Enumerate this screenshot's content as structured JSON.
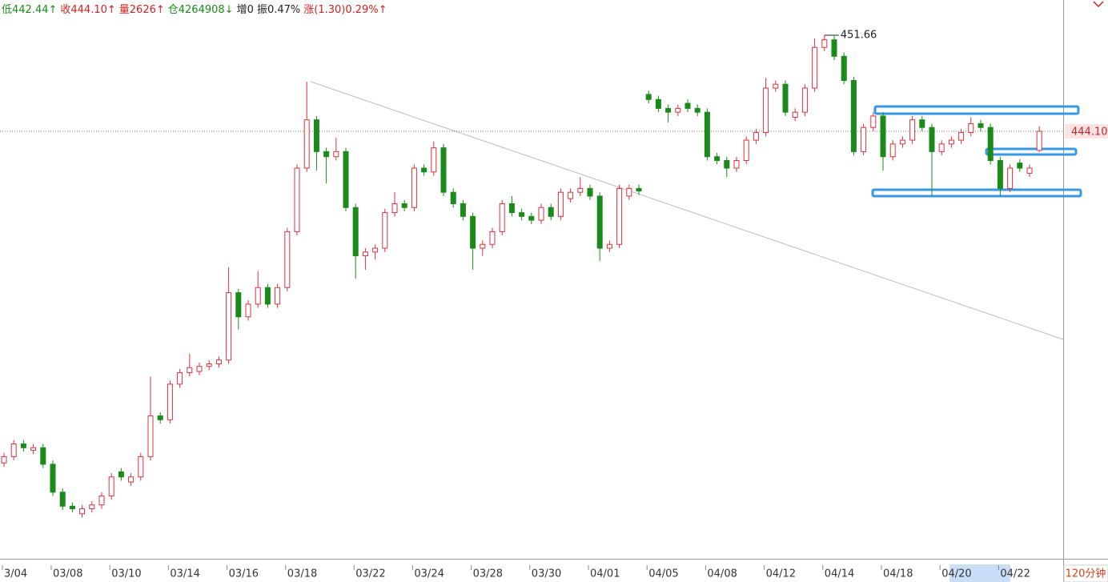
{
  "chart_data": {
    "type": "candlestick",
    "header": [
      {
        "text": "低442.44↑",
        "color": "#1a8a1a"
      },
      {
        "text": "收444.10↑",
        "color": "#d42020"
      },
      {
        "text": "量2626↑",
        "color": "#d42020"
      },
      {
        "text": "仓4264908↓",
        "color": "#1a8a1a"
      },
      {
        "text": "增0 振0.47%",
        "color": "#222222"
      },
      {
        "text": "涨(1.30)0.29%↑",
        "color": "#d42020"
      }
    ],
    "period": "120分钟",
    "up_color": "#e0303c",
    "down_color": "#1a8a1a",
    "ylim": [
      410.46,
      454.43
    ],
    "categories": [
      "3/04",
      null,
      null,
      null,
      null,
      "03/08",
      null,
      null,
      null,
      null,
      null,
      "03/10",
      null,
      null,
      null,
      null,
      null,
      "03/14",
      null,
      null,
      null,
      null,
      null,
      "03/16",
      null,
      null,
      null,
      null,
      null,
      "03/18",
      null,
      null,
      null,
      null,
      null,
      null,
      "03/22",
      null,
      null,
      null,
      null,
      null,
      "03/24",
      null,
      null,
      null,
      null,
      null,
      "03/28",
      null,
      null,
      null,
      null,
      null,
      "03/30",
      null,
      null,
      null,
      null,
      null,
      "04/01",
      null,
      null,
      null,
      null,
      null,
      "04/05",
      null,
      null,
      null,
      null,
      null,
      "04/08",
      null,
      null,
      null,
      null,
      null,
      "04/12",
      null,
      null,
      null,
      null,
      null,
      "04/14",
      null,
      null,
      null,
      null,
      null,
      "04/18",
      null,
      null,
      null,
      null,
      null,
      "04/20",
      null,
      null,
      null,
      null,
      null,
      "04/22",
      null,
      null,
      null,
      null
    ],
    "open": [
      418.0,
      418.5,
      419.5,
      419.0,
      419.2,
      417.9,
      415.7,
      414.6,
      414.0,
      414.4,
      414.7,
      415.4,
      417.3,
      416.5,
      416.9,
      418.5,
      421.7,
      421.4,
      424.2,
      425.1,
      425.2,
      425.6,
      425.8,
      426.1,
      431.4,
      429.5,
      430.5,
      431.8,
      430.5,
      431.8,
      436.2,
      441.2,
      445.0,
      442.5,
      442.1,
      442.5,
      438.1,
      434.3,
      434.6,
      434.9,
      437.7,
      438.4,
      438.1,
      441.2,
      440.9,
      442.8,
      439.3,
      438.4,
      437.4,
      434.9,
      435.2,
      436.2,
      438.4,
      437.7,
      437.4,
      437.1,
      438.1,
      437.4,
      438.8,
      439.3,
      439.6,
      439.0,
      434.9,
      435.2,
      439.0,
      439.6,
      447.0,
      446.6,
      445.9,
      445.6,
      446.3,
      445.9,
      445.6,
      442.1,
      441.8,
      441.2,
      441.8,
      443.4,
      444.0,
      447.5,
      447.8,
      445.2,
      445.6,
      447.5,
      450.7,
      451.3,
      450.0,
      448.1,
      442.5,
      444.4,
      445.3,
      442.1,
      443.1,
      443.4,
      445.0,
      444.4,
      442.5,
      443.1,
      443.4,
      444.0,
      444.7,
      444.4,
      441.8,
      439.6,
      441.6,
      440.8,
      442.6
    ],
    "high": [
      418.8,
      419.8,
      419.8,
      419.5,
      419.5,
      418.2,
      416.0,
      414.9,
      414.7,
      415.0,
      415.7,
      417.2,
      417.6,
      417.2,
      418.8,
      424.8,
      422.0,
      424.5,
      425.4,
      426.6,
      425.9,
      426.1,
      426.4,
      433.4,
      431.7,
      430.8,
      433.1,
      432.1,
      432.1,
      436.5,
      441.5,
      448.0,
      445.3,
      442.8,
      443.6,
      442.8,
      438.4,
      434.9,
      435.2,
      438.0,
      439.3,
      438.7,
      441.5,
      441.5,
      443.3,
      443.1,
      439.6,
      438.7,
      437.7,
      435.5,
      436.5,
      438.7,
      439.0,
      438.0,
      437.7,
      438.4,
      438.4,
      439.6,
      439.6,
      440.5,
      439.9,
      439.3,
      435.5,
      439.9,
      439.9,
      439.9,
      447.3,
      446.9,
      446.2,
      446.2,
      446.6,
      446.2,
      445.9,
      442.4,
      442.1,
      442.1,
      443.7,
      444.3,
      448.3,
      448.1,
      448.1,
      445.9,
      447.8,
      451.4,
      451.66,
      451.6,
      450.3,
      448.4,
      444.7,
      445.6,
      445.6,
      443.4,
      443.7,
      445.3,
      445.3,
      444.7,
      443.4,
      443.7,
      444.3,
      445.2,
      445.0,
      444.7,
      442.1,
      441.5,
      441.9,
      441.5,
      444.5
    ],
    "low": [
      417.7,
      418.2,
      418.9,
      418.7,
      417.6,
      415.4,
      414.3,
      414.1,
      413.7,
      414.1,
      414.4,
      415.1,
      416.6,
      416.2,
      416.6,
      418.2,
      421.1,
      421.1,
      423.9,
      424.8,
      424.9,
      425.3,
      425.5,
      425.8,
      428.5,
      429.2,
      430.2,
      430.2,
      430.2,
      431.5,
      435.9,
      440.9,
      441.0,
      440.0,
      441.8,
      437.8,
      432.5,
      433.2,
      434.0,
      434.6,
      437.4,
      437.8,
      437.8,
      440.6,
      440.6,
      439.0,
      438.1,
      437.1,
      433.2,
      434.3,
      434.9,
      435.9,
      437.4,
      437.1,
      436.8,
      436.8,
      437.1,
      437.1,
      438.5,
      439.0,
      438.7,
      433.9,
      434.6,
      434.9,
      438.7,
      439.1,
      446.3,
      445.6,
      444.8,
      445.3,
      445.6,
      445.3,
      441.8,
      441.5,
      440.5,
      440.9,
      441.5,
      443.1,
      443.7,
      447.2,
      445.3,
      444.9,
      445.3,
      447.2,
      450.4,
      449.7,
      447.8,
      442.2,
      442.2,
      444.1,
      441.0,
      441.8,
      442.8,
      443.1,
      444.1,
      439.0,
      442.2,
      442.8,
      443.1,
      443.7,
      444.1,
      441.5,
      439.0,
      439.3,
      440.9,
      440.5,
      442.44
    ],
    "close": [
      418.5,
      419.5,
      419.2,
      419.2,
      417.9,
      415.7,
      414.6,
      414.4,
      414.4,
      414.7,
      415.4,
      416.9,
      416.9,
      416.9,
      418.5,
      421.7,
      421.4,
      424.2,
      425.1,
      425.5,
      425.6,
      425.8,
      426.1,
      431.4,
      429.5,
      430.5,
      431.8,
      430.5,
      431.8,
      436.2,
      441.2,
      445.0,
      442.5,
      442.1,
      442.5,
      438.1,
      434.3,
      434.6,
      434.9,
      437.7,
      438.4,
      438.1,
      441.2,
      440.9,
      442.8,
      439.3,
      438.4,
      437.4,
      434.9,
      435.2,
      436.2,
      438.4,
      437.7,
      437.4,
      437.1,
      438.1,
      437.4,
      439.3,
      439.3,
      439.6,
      439.0,
      434.9,
      435.2,
      439.6,
      439.6,
      439.4,
      446.6,
      445.9,
      445.6,
      445.9,
      445.9,
      445.6,
      442.1,
      441.8,
      441.2,
      441.8,
      443.4,
      444.0,
      447.5,
      447.8,
      445.6,
      445.6,
      447.5,
      450.7,
      451.3,
      450.0,
      448.1,
      442.5,
      444.4,
      445.3,
      442.1,
      443.1,
      443.4,
      445.0,
      444.4,
      442.5,
      443.1,
      443.4,
      444.0,
      444.7,
      444.4,
      441.8,
      439.6,
      441.2,
      441.2,
      441.2,
      444.1
    ],
    "last_price": {
      "value": 444.1,
      "label": "444.10"
    }
  }
}
